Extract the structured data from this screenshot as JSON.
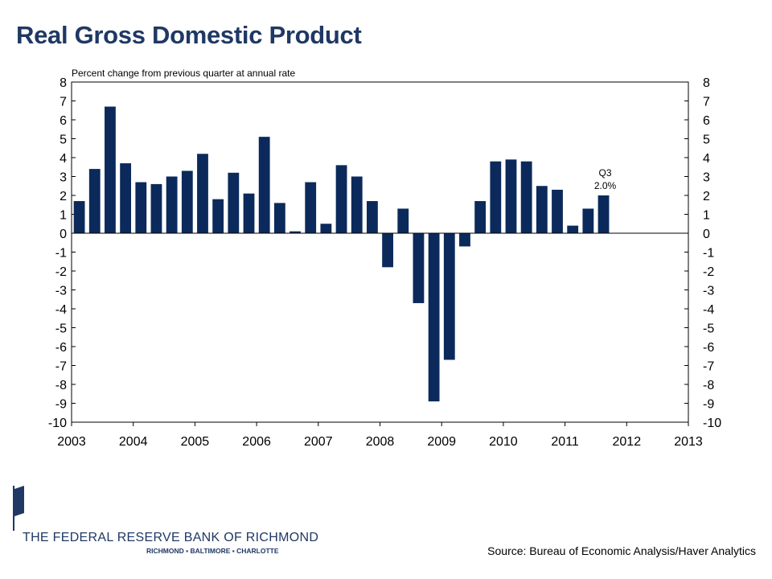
{
  "header": {
    "title": "Real Gross Domestic Product"
  },
  "chart_data": {
    "type": "bar",
    "subtitle": "Percent change from previous quarter at annual rate",
    "xlabel": "",
    "ylabel": "",
    "ylim": [
      -10,
      8
    ],
    "yticks": [
      "8",
      "7",
      "6",
      "5",
      "4",
      "3",
      "2",
      "1",
      "0",
      "-1",
      "-2",
      "-3",
      "-4",
      "-5",
      "-6",
      "-7",
      "-8",
      "-9",
      "-10"
    ],
    "xlim": [
      "2003 Q1",
      "2013 Q1"
    ],
    "year_labels": [
      "2003",
      "2004",
      "2005",
      "2006",
      "2007",
      "2008",
      "2009",
      "2010",
      "2011",
      "2012",
      "2013"
    ],
    "quarters": [
      "2003 Q1",
      "2003 Q2",
      "2003 Q3",
      "2003 Q4",
      "2004 Q1",
      "2004 Q2",
      "2004 Q3",
      "2004 Q4",
      "2005 Q1",
      "2005 Q2",
      "2005 Q3",
      "2005 Q4",
      "2006 Q1",
      "2006 Q2",
      "2006 Q3",
      "2006 Q4",
      "2007 Q1",
      "2007 Q2",
      "2007 Q3",
      "2007 Q4",
      "2008 Q1",
      "2008 Q2",
      "2008 Q3",
      "2008 Q4",
      "2009 Q1",
      "2009 Q2",
      "2009 Q3",
      "2009 Q4",
      "2010 Q1",
      "2010 Q2",
      "2010 Q3",
      "2010 Q4",
      "2011 Q1",
      "2011 Q2",
      "2011 Q3"
    ],
    "values": [
      1.7,
      3.4,
      6.7,
      3.7,
      2.7,
      2.6,
      3.0,
      3.3,
      4.2,
      1.8,
      3.2,
      2.1,
      5.1,
      1.6,
      0.1,
      2.7,
      0.5,
      3.6,
      3.0,
      1.7,
      -1.8,
      1.3,
      -3.7,
      -8.9,
      -6.7,
      -0.7,
      1.7,
      3.8,
      3.9,
      3.8,
      2.5,
      2.3,
      0.4,
      1.3,
      2.0
    ],
    "bar_color": "#0b2a5b",
    "annotation": {
      "quarter": "2011 Q3",
      "label": "Q3",
      "value_label": "2.0%"
    },
    "grid": false,
    "legend": "none"
  },
  "footer": {
    "logo_name": "THE FEDERAL RESERVE BANK OF RICHMOND",
    "logo_cities": "RICHMOND ▪ BALTIMORE ▪ CHARLOTTE",
    "source": "Source: Bureau of Economic Analysis/Haver Analytics"
  },
  "colors": {
    "title": "#1f3864",
    "bars": "#0b2a5b",
    "logo_blue": "#1f3864"
  }
}
